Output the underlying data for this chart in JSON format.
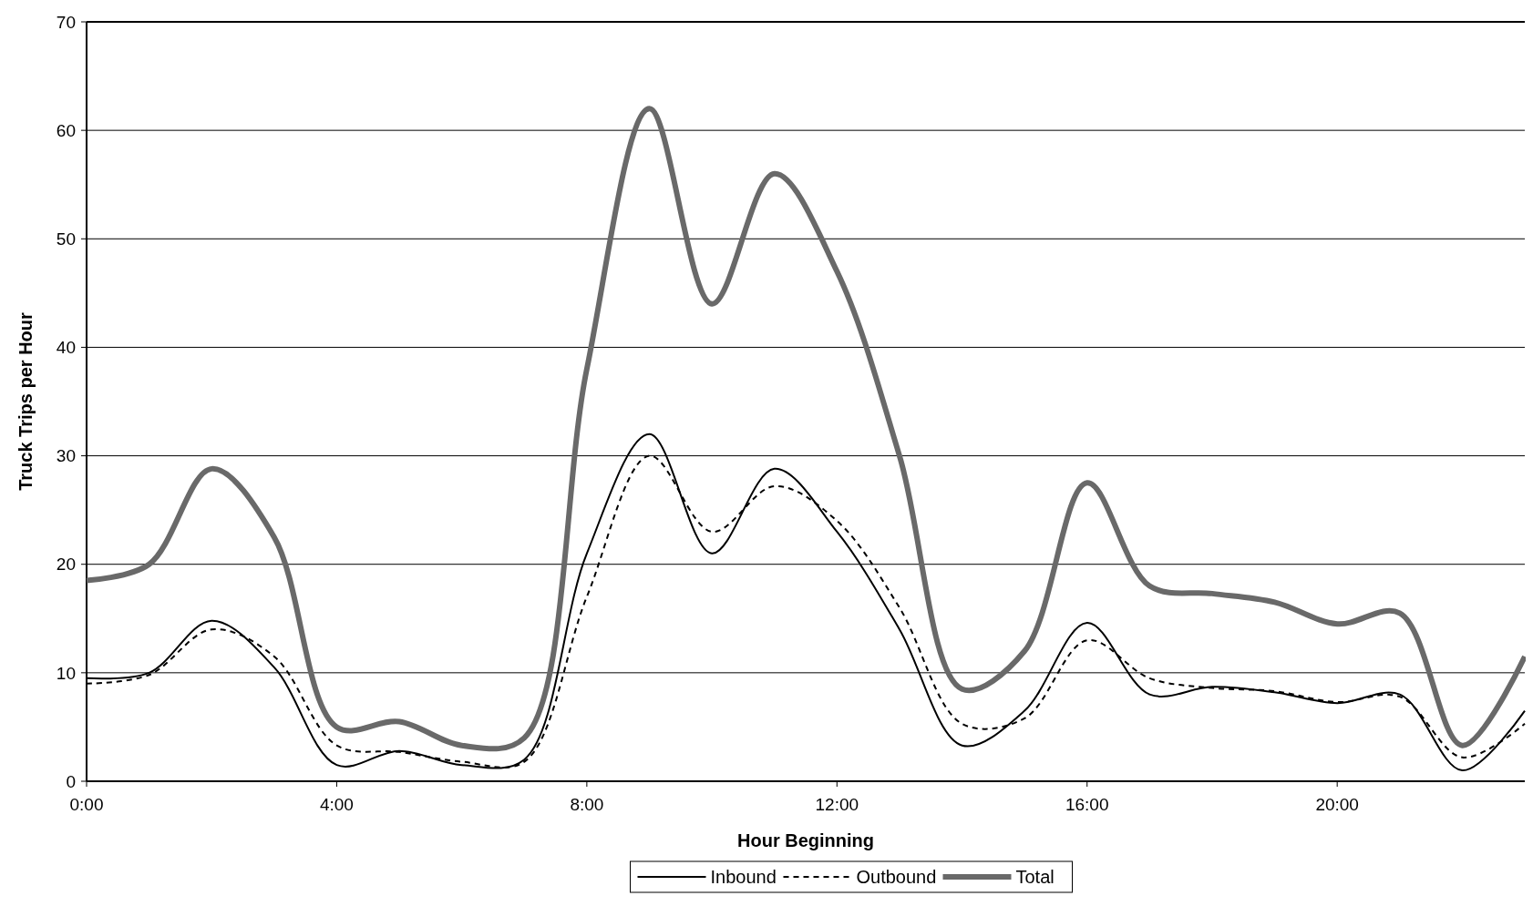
{
  "chart_data": {
    "type": "line",
    "xlabel": "Hour Beginning",
    "ylabel": "Truck Trips per Hour",
    "x": [
      0,
      1,
      2,
      3,
      4,
      5,
      6,
      7,
      8,
      9,
      10,
      11,
      12,
      13,
      14,
      15,
      16,
      17,
      18,
      19,
      20,
      21,
      22,
      23
    ],
    "series": [
      {
        "name": "Inbound",
        "color": "#000000",
        "line_style": "solid",
        "values": [
          9.5,
          10,
          14.8,
          10.5,
          1.5,
          2.8,
          1.5,
          2,
          21,
          32,
          21,
          28.8,
          23,
          14,
          3.3,
          6.5,
          14.6,
          8,
          8.7,
          8.2,
          7.2,
          8,
          1,
          6.5
        ]
      },
      {
        "name": "Outbound",
        "color": "#000000",
        "line_style": "dashed",
        "values": [
          9,
          9.8,
          14,
          11.5,
          3.3,
          2.7,
          1.8,
          1.8,
          17,
          30,
          23,
          27.2,
          24,
          16,
          5.3,
          5.8,
          13,
          9.5,
          8.6,
          8.3,
          7.3,
          7.8,
          2.2,
          5.3
        ]
      },
      {
        "name": "Total",
        "color": "#696969",
        "line_style": "solid",
        "values": [
          18.5,
          20,
          28.8,
          22.5,
          5,
          5.5,
          3.3,
          4,
          38,
          62,
          44,
          56,
          47,
          30,
          8.5,
          12,
          27.5,
          18,
          17.3,
          16.5,
          14.5,
          15.5,
          3.3,
          11.5
        ]
      }
    ],
    "xlim": [
      0,
      23
    ],
    "ylim": [
      0,
      70
    ],
    "xticks": [
      {
        "value": 0,
        "label": "0:00"
      },
      {
        "value": 4,
        "label": "4:00"
      },
      {
        "value": 8,
        "label": "8:00"
      },
      {
        "value": 12,
        "label": "12:00"
      },
      {
        "value": 16,
        "label": "16:00"
      },
      {
        "value": 20,
        "label": "20:00"
      }
    ],
    "yticks": [
      0,
      10,
      20,
      30,
      40,
      50,
      60,
      70
    ],
    "grid": "y",
    "legend": "bottom"
  }
}
